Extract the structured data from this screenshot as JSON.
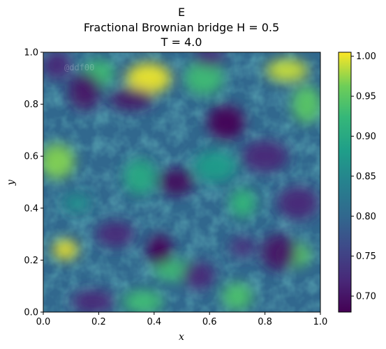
{
  "chart_data": {
    "type": "heatmap",
    "panel_label": "E",
    "title_line1": "Fractional Brownian bridge H = 0.5",
    "title_line2": "T = 4.0",
    "xlabel": "x",
    "ylabel": "y",
    "xlim": [
      0.0,
      1.0
    ],
    "ylim": [
      0.0,
      1.0
    ],
    "x_ticks": [
      "0.0",
      "0.2",
      "0.4",
      "0.6",
      "0.8",
      "1.0"
    ],
    "y_ticks": [
      "0.0",
      "0.2",
      "0.4",
      "0.6",
      "0.8",
      "1.0"
    ],
    "colorbar": {
      "range": [
        0.68,
        1.005
      ],
      "ticks": [
        "0.70",
        "0.75",
        "0.80",
        "0.85",
        "0.90",
        "0.95",
        "1.00"
      ],
      "colormap": "viridis"
    },
    "watermark": "@ddf00",
    "features": [
      {
        "x": 0.08,
        "y": 0.24,
        "value": 1.0
      },
      {
        "x": 0.05,
        "y": 0.58,
        "value": 0.97
      },
      {
        "x": 0.38,
        "y": 0.9,
        "value": 1.0
      },
      {
        "x": 0.2,
        "y": 0.92,
        "value": 0.93
      },
      {
        "x": 0.88,
        "y": 0.93,
        "value": 0.99
      },
      {
        "x": 0.95,
        "y": 0.8,
        "value": 0.95
      },
      {
        "x": 0.58,
        "y": 0.9,
        "value": 0.93
      },
      {
        "x": 0.72,
        "y": 0.42,
        "value": 0.92
      },
      {
        "x": 0.9,
        "y": 0.22,
        "value": 0.95
      },
      {
        "x": 0.48,
        "y": 0.16,
        "value": 0.93
      },
      {
        "x": 0.35,
        "y": 0.52,
        "value": 0.9
      },
      {
        "x": 0.62,
        "y": 0.56,
        "value": 0.88
      },
      {
        "x": 0.7,
        "y": 0.06,
        "value": 0.94
      },
      {
        "x": 0.36,
        "y": 0.04,
        "value": 0.93
      },
      {
        "x": 0.12,
        "y": 0.42,
        "value": 0.86
      },
      {
        "x": 0.66,
        "y": 0.73,
        "value": 0.68
      },
      {
        "x": 0.42,
        "y": 0.24,
        "value": 0.68
      },
      {
        "x": 0.48,
        "y": 0.5,
        "value": 0.69
      },
      {
        "x": 0.32,
        "y": 0.82,
        "value": 0.7
      },
      {
        "x": 0.15,
        "y": 0.85,
        "value": 0.7
      },
      {
        "x": 0.92,
        "y": 0.42,
        "value": 0.72
      },
      {
        "x": 0.05,
        "y": 0.95,
        "value": 0.72
      },
      {
        "x": 0.26,
        "y": 0.3,
        "value": 0.72
      },
      {
        "x": 0.72,
        "y": 0.25,
        "value": 0.73
      },
      {
        "x": 0.85,
        "y": 0.23,
        "value": 0.7
      },
      {
        "x": 0.8,
        "y": 0.6,
        "value": 0.72
      },
      {
        "x": 0.56,
        "y": 0.14,
        "value": 0.72
      },
      {
        "x": 0.18,
        "y": 0.04,
        "value": 0.72
      },
      {
        "x": 0.6,
        "y": 0.98,
        "value": 0.72
      }
    ]
  }
}
